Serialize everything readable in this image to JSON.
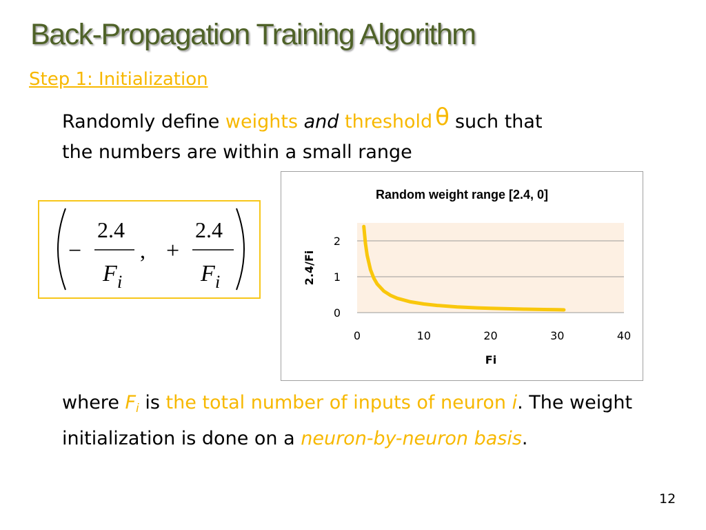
{
  "slide": {
    "title": "Back-Propagation Training Algorithm",
    "step_heading": "Step 1: Initialization",
    "para1": {
      "t1": "Randomly define ",
      "weights": "weights",
      "and": "and",
      "threshold": "threshold",
      "theta": "θ",
      "t2": "such that",
      "line2": "the numbers are within a small range"
    },
    "formula": {
      "minus": "−",
      "plus": "+",
      "numerator": "2.4",
      "denominator": "F",
      "subscript": "i",
      "comma": ","
    },
    "para2": {
      "where": "where ",
      "F": "F",
      "i_sub": "i",
      "is": " is ",
      "total": "the total number of inputs of neuron ",
      "i": "i",
      "rest": ". The weight initialization is done on a ",
      "nbn": "neuron-by-neuron basis",
      "period": "."
    },
    "page_number": "12",
    "colors": {
      "title": "#4f6228",
      "accent": "#f7b800",
      "curve": "#f9c70c",
      "plot_bg": "#fdf0e3"
    }
  },
  "chart_data": {
    "type": "line",
    "title": "Random weight range [2.4, 0]",
    "xlabel": "Fi",
    "ylabel": "2.4/Fi",
    "xlim": [
      0,
      40
    ],
    "ylim": [
      0,
      2.5
    ],
    "xticks": [
      "0",
      "10",
      "20",
      "30",
      "40"
    ],
    "yticks": [
      "0",
      "1",
      "2"
    ],
    "grid": true,
    "series": [
      {
        "x": [
          1,
          1.25,
          1.5,
          2,
          2.5,
          3,
          4,
          5,
          6,
          8,
          10,
          12,
          15,
          18,
          20,
          22,
          25,
          28,
          30,
          31
        ],
        "values": [
          2.4,
          1.92,
          1.6,
          1.2,
          0.96,
          0.8,
          0.6,
          0.48,
          0.4,
          0.3,
          0.24,
          0.2,
          0.16,
          0.133,
          0.12,
          0.109,
          0.096,
          0.086,
          0.08,
          0.077
        ]
      }
    ]
  }
}
